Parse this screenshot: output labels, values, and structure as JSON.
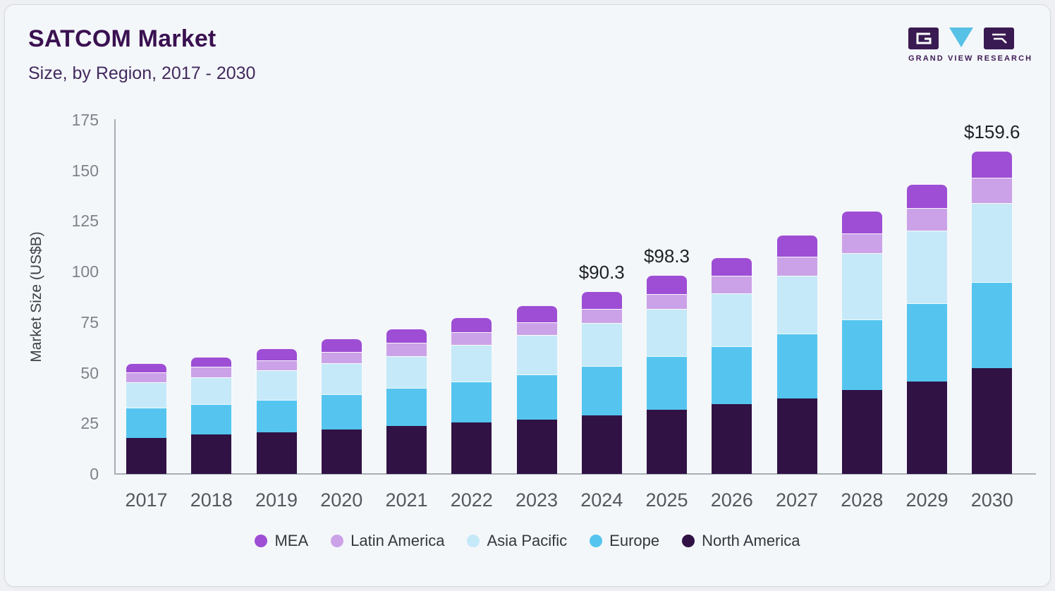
{
  "header": {
    "title": "SATCOM Market",
    "subtitle": "Size, by Region, 2017 - 2030"
  },
  "logo": {
    "name": "Grand View Research",
    "text": "GRAND VIEW RESEARCH",
    "block_color": "#3a1a52",
    "triangle_color": "#57c1e6"
  },
  "chart_data": {
    "type": "bar",
    "stacked": true,
    "title": "SATCOM Market Size, by Region, 2017 - 2030",
    "xlabel": "",
    "ylabel": "Market Size (US$B)",
    "ylim": [
      0,
      175
    ],
    "yticks": [
      0,
      25,
      50,
      75,
      100,
      125,
      150,
      175
    ],
    "grid": false,
    "legend_position": "bottom",
    "categories": [
      "2017",
      "2018",
      "2019",
      "2020",
      "2021",
      "2022",
      "2023",
      "2024",
      "2025",
      "2026",
      "2027",
      "2028",
      "2029",
      "2030"
    ],
    "series": [
      {
        "name": "North America",
        "color": "#301245",
        "values": [
          17.9,
          19.5,
          20.7,
          22.1,
          23.7,
          25.4,
          27.0,
          29.1,
          31.6,
          34.4,
          37.4,
          41.5,
          45.6,
          52.3
        ]
      },
      {
        "name": "Europe",
        "color": "#55c5ef",
        "values": [
          15.0,
          14.9,
          15.9,
          17.2,
          18.7,
          20.2,
          22.0,
          24.3,
          26.6,
          28.8,
          31.8,
          35.0,
          38.9,
          42.6
        ]
      },
      {
        "name": "Asia Pacific",
        "color": "#c5e9f8",
        "values": [
          12.4,
          13.4,
          14.7,
          15.4,
          15.9,
          18.2,
          19.7,
          21.1,
          23.5,
          26.2,
          28.6,
          32.5,
          35.6,
          39.0
        ]
      },
      {
        "name": "Latin America",
        "color": "#cba2e8",
        "values": [
          4.8,
          5.2,
          4.9,
          5.6,
          6.6,
          6.3,
          6.4,
          7.2,
          7.2,
          8.4,
          9.5,
          9.9,
          11.4,
          12.4
        ]
      },
      {
        "name": "MEA",
        "color": "#9d4ed4",
        "values": [
          4.6,
          5.0,
          5.8,
          6.7,
          6.9,
          7.3,
          8.3,
          8.6,
          9.4,
          9.3,
          11.0,
          11.0,
          11.9,
          13.3
        ]
      }
    ],
    "totals": [
      54.7,
      58.0,
      62.0,
      67.0,
      71.8,
      77.4,
      83.4,
      90.3,
      98.3,
      107.1,
      118.3,
      129.9,
      143.4,
      159.6
    ],
    "annotations": [
      {
        "category": "2024",
        "text": "$90.3"
      },
      {
        "category": "2025",
        "text": "$98.3"
      },
      {
        "category": "2030",
        "text": "$159.6"
      }
    ],
    "legend_order": [
      "MEA",
      "Latin America",
      "Asia Pacific",
      "Europe",
      "North America"
    ]
  }
}
